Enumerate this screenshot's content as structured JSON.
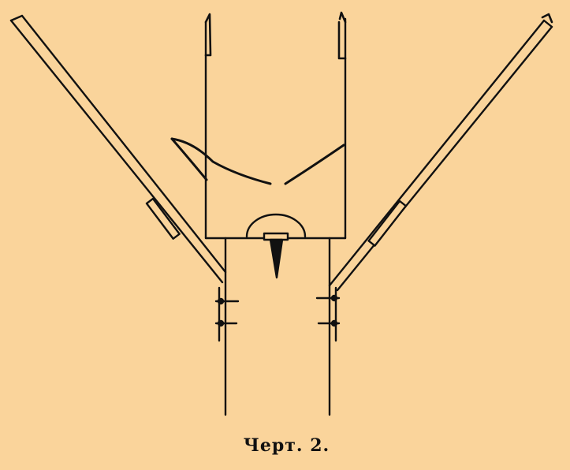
{
  "caption": "Черт. 2.",
  "colors": {
    "background": "#fad49b",
    "ink": "#111111"
  }
}
